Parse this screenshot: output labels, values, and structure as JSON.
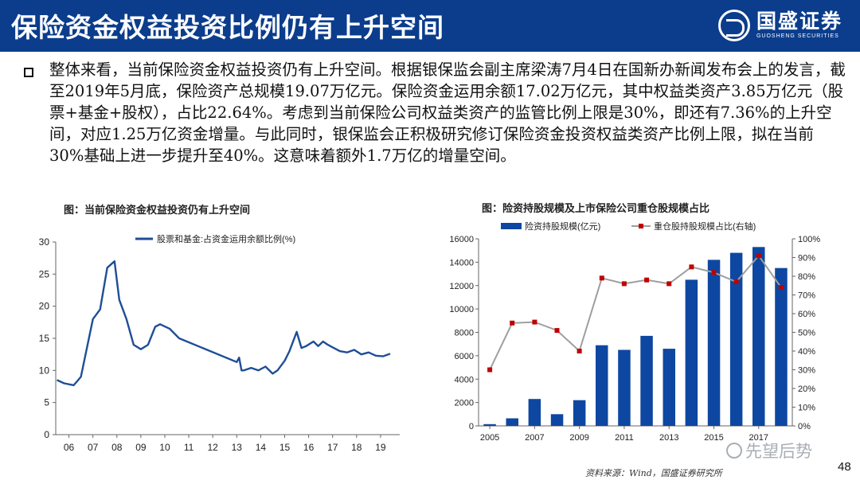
{
  "header": {
    "title": "保险资金权益投资比例仍有上升空间",
    "logo_name": "国盛证券",
    "logo_sub": "GUOSHENG SECURITIES"
  },
  "paragraph": "整体来看，当前保险资金权益投资仍有上升空间。根据银保监会副主席梁涛7月4日在国新办新闻发布会上的发言，截至2019年5月底，保险资产总规模19.07万亿元。保险资金运用余额17.02万亿元，其中权益类资产3.85万亿元（股票+基金+股权），占比22.64%。考虑到当前保险公司权益类资产的监管比例上限是30%，即还有7.36%的上升空间，对应1.25万亿资金增量。与此同时，银保监会正积极研究修订保险资金投资权益类资产比例上限，拟在当前30%基础上进一步提升至40%。这意味着额外1.7万亿的增量空间。",
  "left_caption": "图：当前保险资金权益投资仍有上升空间",
  "right_caption": "图：险资持股规模及上市保险公司重仓股规模占比",
  "footer": {
    "source": "资料来源：Wind，国盛证券研究所",
    "page": "48",
    "watermark": "先望后势"
  },
  "colors": {
    "header": "#0b3d8c",
    "series_blue": "#1f4e96",
    "bar_blue": "#0d47a1",
    "line_gray": "#9e9e9e",
    "marker_red": "#c00000"
  },
  "chart_data": [
    {
      "type": "line",
      "title": "",
      "series": [
        {
          "name": "股票和基金:占资金运用余额比例(%)",
          "x": [
            2005.5,
            2005.8,
            2006.2,
            2006.5,
            2007.0,
            2007.3,
            2007.6,
            2007.9,
            2008.1,
            2008.4,
            2008.7,
            2009.0,
            2009.3,
            2009.6,
            2009.8,
            2010.2,
            2010.6,
            2013.0,
            2013.1,
            2013.2,
            2013.3,
            2013.6,
            2013.9,
            2014.2,
            2014.5,
            2014.7,
            2015.0,
            2015.2,
            2015.5,
            2015.7,
            2015.9,
            2016.2,
            2016.4,
            2016.6,
            2016.8,
            2017.0,
            2017.3,
            2017.6,
            2017.9,
            2018.2,
            2018.5,
            2018.8,
            2019.1,
            2019.4
          ],
          "y": [
            8.5,
            8.0,
            7.7,
            9.0,
            18.0,
            19.5,
            26.0,
            27.0,
            21.0,
            18.0,
            14.0,
            13.3,
            14.0,
            16.8,
            17.2,
            16.5,
            15.0,
            11.3,
            12.0,
            10.0,
            10.0,
            10.4,
            10.0,
            10.6,
            9.5,
            10.0,
            11.5,
            13.0,
            16.0,
            13.5,
            13.8,
            14.5,
            13.8,
            14.5,
            14.0,
            13.6,
            13.0,
            12.8,
            13.2,
            12.5,
            12.8,
            12.3,
            12.2,
            12.6
          ]
        }
      ],
      "x_ticks": [
        "06",
        "07",
        "08",
        "09",
        "10",
        "11",
        "12",
        "13",
        "14",
        "15",
        "16",
        "17",
        "18",
        "19"
      ],
      "ylim": [
        0,
        30
      ],
      "y_ticks": [
        0,
        5,
        10,
        15,
        20,
        25,
        30
      ],
      "legend": "top"
    },
    {
      "type": "bar",
      "title": "",
      "categories": [
        "2005",
        "2006",
        "2007",
        "2008",
        "2009",
        "2010",
        "2011",
        "2012",
        "2013",
        "2014",
        "2015",
        "2016",
        "2017",
        "2018"
      ],
      "x_tick_labels": [
        "2005",
        "2007",
        "2009",
        "2011",
        "2013",
        "2015",
        "2017"
      ],
      "series": [
        {
          "name": "险资持股规模(亿元)",
          "axis": "left",
          "kind": "bar",
          "values": [
            150,
            650,
            2300,
            1000,
            2200,
            6900,
            6500,
            7700,
            6600,
            12500,
            14200,
            14800,
            15300,
            13500
          ]
        },
        {
          "name": "重仓股持股规模占比(右轴)",
          "axis": "right",
          "kind": "line",
          "values": [
            30,
            55,
            55.5,
            51,
            40,
            79,
            76,
            78,
            76,
            85,
            82,
            77,
            91,
            74
          ]
        }
      ],
      "ylim_left": [
        0,
        16000
      ],
      "y_ticks_left": [
        0,
        2000,
        4000,
        6000,
        8000,
        10000,
        12000,
        14000,
        16000
      ],
      "ylim_right": [
        0,
        100
      ],
      "y_ticks_right": [
        "0%",
        "10%",
        "20%",
        "30%",
        "40%",
        "50%",
        "60%",
        "70%",
        "80%",
        "90%",
        "100%"
      ],
      "legend": "top"
    }
  ]
}
